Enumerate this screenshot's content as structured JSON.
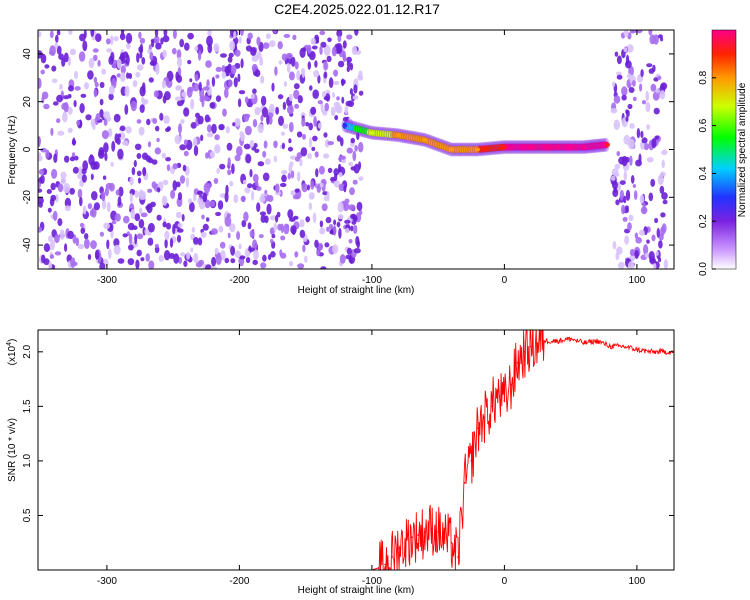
{
  "title": "C2E4.2025.022.01.12.R17",
  "colors": {
    "spectrogram_base": "#7a22e0",
    "snr_line": "#ff0000",
    "axis": "#000000"
  },
  "chart_data": [
    {
      "type": "heatmap",
      "title": "C2E4.2025.022.01.12.R17",
      "xlabel": "Height of straight line (km)",
      "ylabel": "Frequency (Hz)",
      "xlim": [
        -352,
        128
      ],
      "ylim": [
        -50,
        50
      ],
      "x_ticks": [
        -300,
        -200,
        -100,
        0,
        100
      ],
      "x_tick_labels": [
        "-300",
        "-200",
        "-100",
        "0",
        "100"
      ],
      "y_ticks": [
        -40,
        -20,
        0,
        20,
        40
      ],
      "y_tick_labels": [
        "-40",
        "-20",
        "0",
        "20",
        "40"
      ],
      "colorbar": {
        "label": "Normalized spectral amplitude",
        "range": [
          0,
          1
        ],
        "ticks": [
          0.0,
          0.2,
          0.4,
          0.6,
          0.8
        ],
        "tick_labels": [
          "0.0",
          "0.2",
          "0.4",
          "0.6",
          "0.8"
        ]
      },
      "regions": [
        {
          "kind": "noise",
          "x_range": [
            -352,
            -108
          ],
          "amplitude": 0.1
        },
        {
          "kind": "noise",
          "x_range": [
            82,
            122
          ],
          "amplitude": 0.1
        }
      ],
      "ridge": [
        {
          "x": -120,
          "freq": 10,
          "amplitude": 0.3
        },
        {
          "x": -100,
          "freq": 7,
          "amplitude": 0.6
        },
        {
          "x": -80,
          "freq": 6,
          "amplitude": 0.7
        },
        {
          "x": -60,
          "freq": 4,
          "amplitude": 0.8
        },
        {
          "x": -40,
          "freq": 0,
          "amplitude": 0.75
        },
        {
          "x": -20,
          "freq": 0,
          "amplitude": 0.8
        },
        {
          "x": 0,
          "freq": 1,
          "amplitude": 0.9
        },
        {
          "x": 20,
          "freq": 1,
          "amplitude": 1.0
        },
        {
          "x": 40,
          "freq": 1,
          "amplitude": 1.0
        },
        {
          "x": 60,
          "freq": 1,
          "amplitude": 0.95
        },
        {
          "x": 78,
          "freq": 2,
          "amplitude": 0.9
        }
      ]
    },
    {
      "type": "line",
      "xlabel": "Height of straight line (km)",
      "ylabel": "SNR (10 * v/v)",
      "y_multiplier": "(x10",
      "y_multiplier_exp": "4",
      "y_multiplier_close": ")",
      "xlim": [
        -352,
        128
      ],
      "ylim": [
        0,
        2.2
      ],
      "x_ticks": [
        -300,
        -200,
        -100,
        0,
        100
      ],
      "x_tick_labels": [
        "-300",
        "-200",
        "-100",
        "0",
        "100"
      ],
      "y_ticks": [
        0.5,
        1.0,
        1.5,
        2.0
      ],
      "y_tick_labels": [
        "0.5",
        "1.0",
        "1.5",
        "2.0"
      ],
      "series": [
        {
          "x": [
            -352,
            -200,
            -100,
            -95,
            -90,
            -85,
            -80,
            -75,
            -70,
            -65,
            -60,
            -55,
            -50,
            -45,
            -40,
            -35,
            -30,
            -25,
            -20,
            -15,
            -10,
            -5,
            0,
            5,
            10,
            15,
            20,
            25,
            30,
            40,
            50,
            60,
            70,
            80,
            90,
            100,
            110,
            120,
            128
          ],
          "y": [
            0.0,
            0.0,
            0.0,
            0.02,
            0.05,
            0.12,
            0.2,
            0.25,
            0.3,
            0.32,
            0.35,
            0.38,
            0.35,
            0.3,
            0.25,
            0.12,
            0.8,
            1.0,
            1.3,
            1.4,
            1.5,
            1.6,
            1.55,
            1.7,
            1.9,
            2.0,
            2.05,
            2.08,
            2.1,
            2.1,
            2.12,
            2.08,
            2.1,
            2.05,
            2.05,
            2.02,
            2.0,
            2.0,
            2.0
          ]
        }
      ]
    }
  ]
}
